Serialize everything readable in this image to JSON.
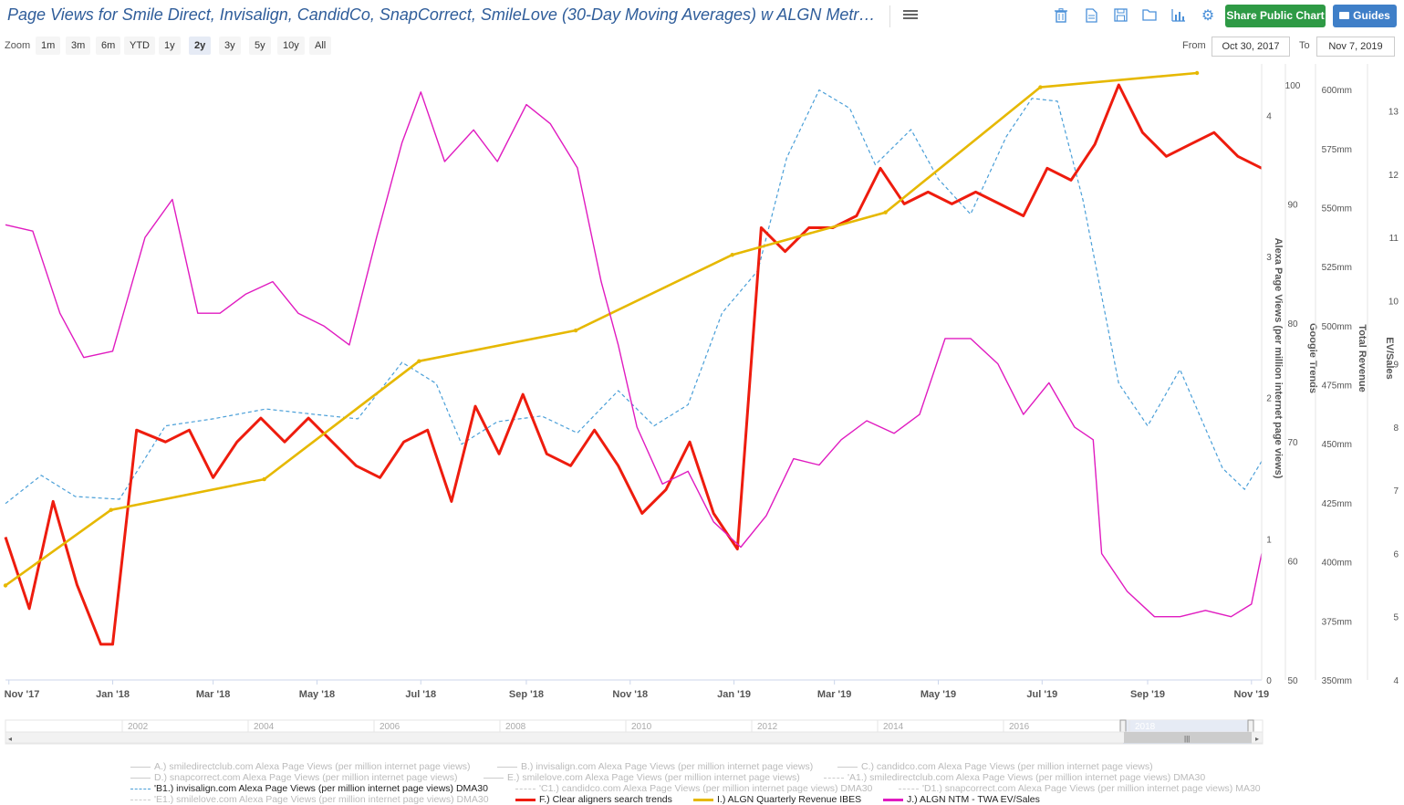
{
  "header": {
    "title": "Page Views for Smile Direct, Invisalign, CandidCo, SnapCorrect, SmileLove (30-Day Moving Averages) w ALGN Metr…",
    "share_label": "Share Public Chart",
    "guides_label": "Guides"
  },
  "toolbar": {
    "icons": [
      "trash-icon",
      "document-icon",
      "save-icon",
      "folder-icon",
      "bar-chart-icon",
      "gear-icon"
    ]
  },
  "zoom": {
    "label": "Zoom",
    "options": [
      "1m",
      "3m",
      "6m",
      "YTD",
      "1y",
      "2y",
      "3y",
      "5y",
      "10y",
      "All"
    ],
    "active": "2y"
  },
  "range": {
    "from_label": "From",
    "from_value": "Oct 30, 2017",
    "to_label": "To",
    "to_value": "Nov 7, 2019"
  },
  "navigator": {
    "years": [
      "2002",
      "2004",
      "2006",
      "2008",
      "2010",
      "2012",
      "2014",
      "2016",
      "2018"
    ]
  },
  "chart_data": {
    "type": "line",
    "x_ticks": [
      "Nov '17",
      "Jan '18",
      "Mar '18",
      "May '18",
      "Jul '18",
      "Sep '18",
      "Nov '18",
      "Jan '19",
      "Mar '19",
      "May '19",
      "Jul '19",
      "Sep '19",
      "Nov '19"
    ],
    "x_range": [
      "2017-10-30",
      "2019-11-07"
    ],
    "axes": {
      "alexa": {
        "label": "Alexa Page Views (per million internet page views)",
        "range": [
          0,
          4.3
        ],
        "ticks": [
          "0",
          "1",
          "2",
          "3",
          "4"
        ]
      },
      "trends": {
        "label": "Google Trends",
        "range": [
          50,
          101
        ],
        "ticks": [
          "50",
          "60",
          "70",
          "80",
          "90",
          "100"
        ]
      },
      "revenue": {
        "label": "Total Revenue",
        "range": [
          350,
          607
        ],
        "ticks": [
          "350mm",
          "375mm",
          "400mm",
          "425mm",
          "450mm",
          "475mm",
          "500mm",
          "525mm",
          "550mm",
          "575mm",
          "600mm"
        ]
      },
      "evsales": {
        "label": "EV/Sales",
        "range": [
          4,
          13.6
        ],
        "ticks": [
          "4",
          "5",
          "6",
          "7",
          "8",
          "9",
          "10",
          "11",
          "12",
          "13"
        ]
      }
    },
    "colors": {
      "invisalign": "#4a9fd8",
      "trends": "#ee1c0e",
      "revenue": "#e6b800",
      "evsales": "#e01bc0"
    },
    "series": [
      {
        "name": "'B1.) invisalign.com Alexa Page Views (per million internet page views) DMA30",
        "axis": "alexa",
        "style": "dashed",
        "points": [
          [
            "2017-10-30",
            1.25
          ],
          [
            "2017-11-20",
            1.45
          ],
          [
            "2017-12-10",
            1.3
          ],
          [
            "2018-01-05",
            1.28
          ],
          [
            "2018-02-01",
            1.8
          ],
          [
            "2018-03-01",
            1.85
          ],
          [
            "2018-04-01",
            1.92
          ],
          [
            "2018-05-01",
            1.88
          ],
          [
            "2018-05-25",
            1.85
          ],
          [
            "2018-06-20",
            2.25
          ],
          [
            "2018-07-10",
            2.1
          ],
          [
            "2018-07-25",
            1.67
          ],
          [
            "2018-08-15",
            1.83
          ],
          [
            "2018-09-10",
            1.87
          ],
          [
            "2018-10-01",
            1.75
          ],
          [
            "2018-10-25",
            2.05
          ],
          [
            "2018-11-15",
            1.8
          ],
          [
            "2018-12-05",
            1.95
          ],
          [
            "2018-12-25",
            2.6
          ],
          [
            "2019-01-15",
            2.9
          ],
          [
            "2019-02-01",
            3.7
          ],
          [
            "2019-02-20",
            4.18
          ],
          [
            "2019-03-10",
            4.05
          ],
          [
            "2019-03-25",
            3.65
          ],
          [
            "2019-04-15",
            3.9
          ],
          [
            "2019-05-01",
            3.55
          ],
          [
            "2019-05-20",
            3.3
          ],
          [
            "2019-06-10",
            3.85
          ],
          [
            "2019-06-25",
            4.12
          ],
          [
            "2019-07-10",
            4.1
          ],
          [
            "2019-07-25",
            3.4
          ],
          [
            "2019-08-15",
            2.1
          ],
          [
            "2019-09-01",
            1.8
          ],
          [
            "2019-09-20",
            2.2
          ],
          [
            "2019-10-15",
            1.5
          ],
          [
            "2019-10-28",
            1.35
          ],
          [
            "2019-11-07",
            1.55
          ]
        ]
      },
      {
        "name": "F.) Clear aligners search trends",
        "axis": "trends",
        "style": "solid",
        "points": [
          [
            "2017-10-30",
            62
          ],
          [
            "2017-11-13",
            56
          ],
          [
            "2017-11-27",
            65
          ],
          [
            "2017-12-11",
            58
          ],
          [
            "2017-12-25",
            53
          ],
          [
            "2018-01-01",
            53
          ],
          [
            "2018-01-15",
            71
          ],
          [
            "2018-02-01",
            70
          ],
          [
            "2018-02-15",
            71
          ],
          [
            "2018-03-01",
            67
          ],
          [
            "2018-03-15",
            70
          ],
          [
            "2018-03-29",
            72
          ],
          [
            "2018-04-12",
            70
          ],
          [
            "2018-04-26",
            72
          ],
          [
            "2018-05-10",
            70
          ],
          [
            "2018-05-24",
            68
          ],
          [
            "2018-06-07",
            67
          ],
          [
            "2018-06-21",
            70
          ],
          [
            "2018-07-05",
            71
          ],
          [
            "2018-07-19",
            65
          ],
          [
            "2018-08-02",
            73
          ],
          [
            "2018-08-16",
            69
          ],
          [
            "2018-08-30",
            74
          ],
          [
            "2018-09-13",
            69
          ],
          [
            "2018-09-27",
            68
          ],
          [
            "2018-10-11",
            71
          ],
          [
            "2018-10-25",
            68
          ],
          [
            "2018-11-08",
            64
          ],
          [
            "2018-11-22",
            66
          ],
          [
            "2018-12-06",
            70
          ],
          [
            "2018-12-20",
            64
          ],
          [
            "2019-01-03",
            61
          ],
          [
            "2019-01-17",
            88
          ],
          [
            "2019-01-31",
            86
          ],
          [
            "2019-02-14",
            88
          ],
          [
            "2019-02-28",
            88
          ],
          [
            "2019-03-14",
            89
          ],
          [
            "2019-03-28",
            93
          ],
          [
            "2019-04-11",
            90
          ],
          [
            "2019-04-25",
            91
          ],
          [
            "2019-05-09",
            90
          ],
          [
            "2019-05-23",
            91
          ],
          [
            "2019-06-06",
            90
          ],
          [
            "2019-06-20",
            89
          ],
          [
            "2019-07-04",
            93
          ],
          [
            "2019-07-18",
            92
          ],
          [
            "2019-08-01",
            95
          ],
          [
            "2019-08-15",
            100
          ],
          [
            "2019-08-29",
            96
          ],
          [
            "2019-09-12",
            94
          ],
          [
            "2019-09-26",
            95
          ],
          [
            "2019-10-10",
            96
          ],
          [
            "2019-10-24",
            94
          ],
          [
            "2019-11-07",
            93
          ]
        ]
      },
      {
        "name": "I.) ALGN Quarterly Revenue IBES",
        "axis": "revenue",
        "style": "solid",
        "points": [
          [
            "2017-10-30",
            390
          ],
          [
            "2017-12-31",
            422
          ],
          [
            "2018-03-31",
            435
          ],
          [
            "2018-06-30",
            485
          ],
          [
            "2018-09-30",
            498
          ],
          [
            "2018-12-31",
            530
          ],
          [
            "2019-03-31",
            548
          ],
          [
            "2019-06-30",
            601
          ],
          [
            "2019-09-30",
            607
          ]
        ]
      },
      {
        "name": "J.) ALGN NTM - TWA EV/Sales",
        "axis": "evsales",
        "style": "solid",
        "points": [
          [
            "2017-10-30",
            11.2
          ],
          [
            "2017-11-15",
            11.1
          ],
          [
            "2017-12-01",
            9.8
          ],
          [
            "2017-12-15",
            9.1
          ],
          [
            "2018-01-01",
            9.2
          ],
          [
            "2018-01-20",
            11.0
          ],
          [
            "2018-02-05",
            11.6
          ],
          [
            "2018-02-20",
            9.8
          ],
          [
            "2018-03-05",
            9.8
          ],
          [
            "2018-03-20",
            10.1
          ],
          [
            "2018-04-05",
            10.3
          ],
          [
            "2018-04-20",
            9.8
          ],
          [
            "2018-05-05",
            9.6
          ],
          [
            "2018-05-20",
            9.3
          ],
          [
            "2018-06-05",
            11.0
          ],
          [
            "2018-06-20",
            12.5
          ],
          [
            "2018-07-01",
            13.3
          ],
          [
            "2018-07-15",
            12.2
          ],
          [
            "2018-08-01",
            12.7
          ],
          [
            "2018-08-15",
            12.2
          ],
          [
            "2018-09-01",
            13.1
          ],
          [
            "2018-09-15",
            12.8
          ],
          [
            "2018-10-01",
            12.1
          ],
          [
            "2018-10-15",
            10.3
          ],
          [
            "2018-10-25",
            9.3
          ],
          [
            "2018-11-05",
            8.0
          ],
          [
            "2018-11-20",
            7.1
          ],
          [
            "2018-12-05",
            7.3
          ],
          [
            "2018-12-20",
            6.5
          ],
          [
            "2019-01-05",
            6.1
          ],
          [
            "2019-01-20",
            6.6
          ],
          [
            "2019-02-05",
            7.5
          ],
          [
            "2019-02-20",
            7.4
          ],
          [
            "2019-03-05",
            7.8
          ],
          [
            "2019-03-20",
            8.1
          ],
          [
            "2019-04-05",
            7.9
          ],
          [
            "2019-04-20",
            8.2
          ],
          [
            "2019-05-05",
            9.4
          ],
          [
            "2019-05-20",
            9.4
          ],
          [
            "2019-06-05",
            9.0
          ],
          [
            "2019-06-20",
            8.2
          ],
          [
            "2019-07-05",
            8.7
          ],
          [
            "2019-07-20",
            8.0
          ],
          [
            "2019-07-31",
            7.8
          ],
          [
            "2019-08-05",
            6.0
          ],
          [
            "2019-08-20",
            5.4
          ],
          [
            "2019-09-05",
            5.0
          ],
          [
            "2019-09-20",
            5.0
          ],
          [
            "2019-10-05",
            5.1
          ],
          [
            "2019-10-20",
            5.0
          ],
          [
            "2019-11-01",
            5.2
          ],
          [
            "2019-11-07",
            6.0
          ]
        ]
      }
    ]
  },
  "legend": [
    {
      "label": "A.) smiledirectclub.com Alexa Page Views (per million internet page views)",
      "active": false,
      "dashed": false
    },
    {
      "label": "B.) invisalign.com Alexa Page Views (per million internet page views)",
      "active": false,
      "dashed": false
    },
    {
      "label": "C.) candidco.com Alexa Page Views (per million internet page views)",
      "active": false,
      "dashed": false
    },
    {
      "label": "D.) snapcorrect.com Alexa Page Views (per million internet page views)",
      "active": false,
      "dashed": false
    },
    {
      "label": "E.) smilelove.com Alexa Page Views (per million internet page views)",
      "active": false,
      "dashed": false
    },
    {
      "label": "'A1.) smiledirectclub.com Alexa Page Views (per million internet page views) DMA30",
      "active": false,
      "dashed": true
    },
    {
      "label": "'B1.) invisalign.com Alexa Page Views (per million internet page views) DMA30",
      "active": true,
      "dashed": true,
      "color": "#4a9fd8"
    },
    {
      "label": "'C1.) candidco.com Alexa Page Views (per million internet page views) DMA30",
      "active": false,
      "dashed": true
    },
    {
      "label": "'D1.) snapcorrect.com Alexa Page Views (per million internet page views) MA30",
      "active": false,
      "dashed": true
    },
    {
      "label": "'E1.) smilelove.com Alexa Page Views (per million internet page views) DMA30",
      "active": false,
      "dashed": true
    },
    {
      "label": "F.) Clear aligners search trends",
      "active": true,
      "dashed": false,
      "color": "#ee1c0e"
    },
    {
      "label": "I.) ALGN Quarterly Revenue IBES",
      "active": true,
      "dashed": false,
      "color": "#e6b800"
    },
    {
      "label": "J.) ALGN NTM - TWA EV/Sales",
      "active": true,
      "dashed": false,
      "color": "#e01bc0"
    }
  ]
}
